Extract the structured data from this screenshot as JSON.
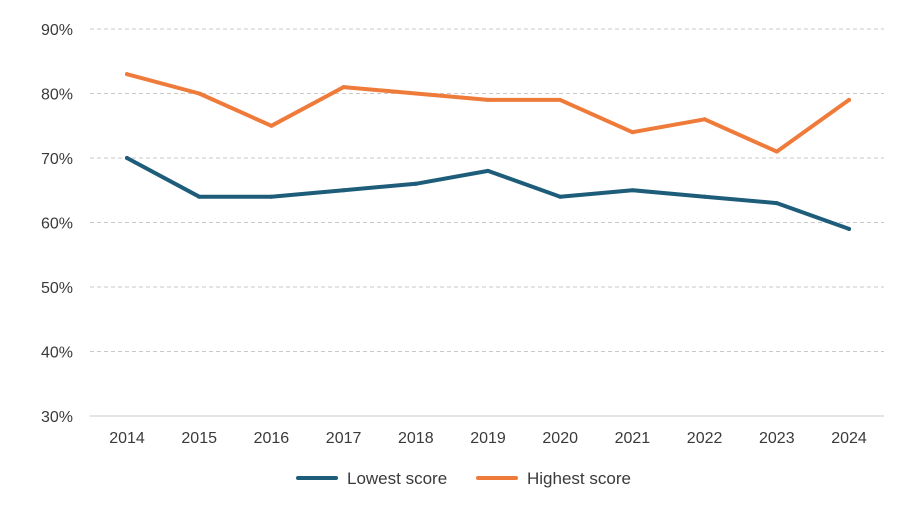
{
  "chart_data": {
    "type": "line",
    "categories": [
      "2014",
      "2015",
      "2016",
      "2017",
      "2018",
      "2019",
      "2020",
      "2021",
      "2022",
      "2023",
      "2024"
    ],
    "series": [
      {
        "name": "Lowest score",
        "color": "#1e5d7a",
        "values": [
          70,
          64,
          64,
          65,
          66,
          68,
          64,
          65,
          64,
          63,
          59
        ]
      },
      {
        "name": "Highest score",
        "color": "#ef7b3b",
        "values": [
          83,
          80,
          75,
          81,
          80,
          79,
          79,
          74,
          76,
          71,
          79
        ]
      }
    ],
    "title": "",
    "xlabel": "",
    "ylabel": "",
    "ylim": [
      30,
      90
    ],
    "yticks": [
      "30%",
      "40%",
      "50%",
      "60%",
      "70%",
      "80%",
      "90%"
    ],
    "grid": true,
    "legend_position": "bottom-center"
  }
}
